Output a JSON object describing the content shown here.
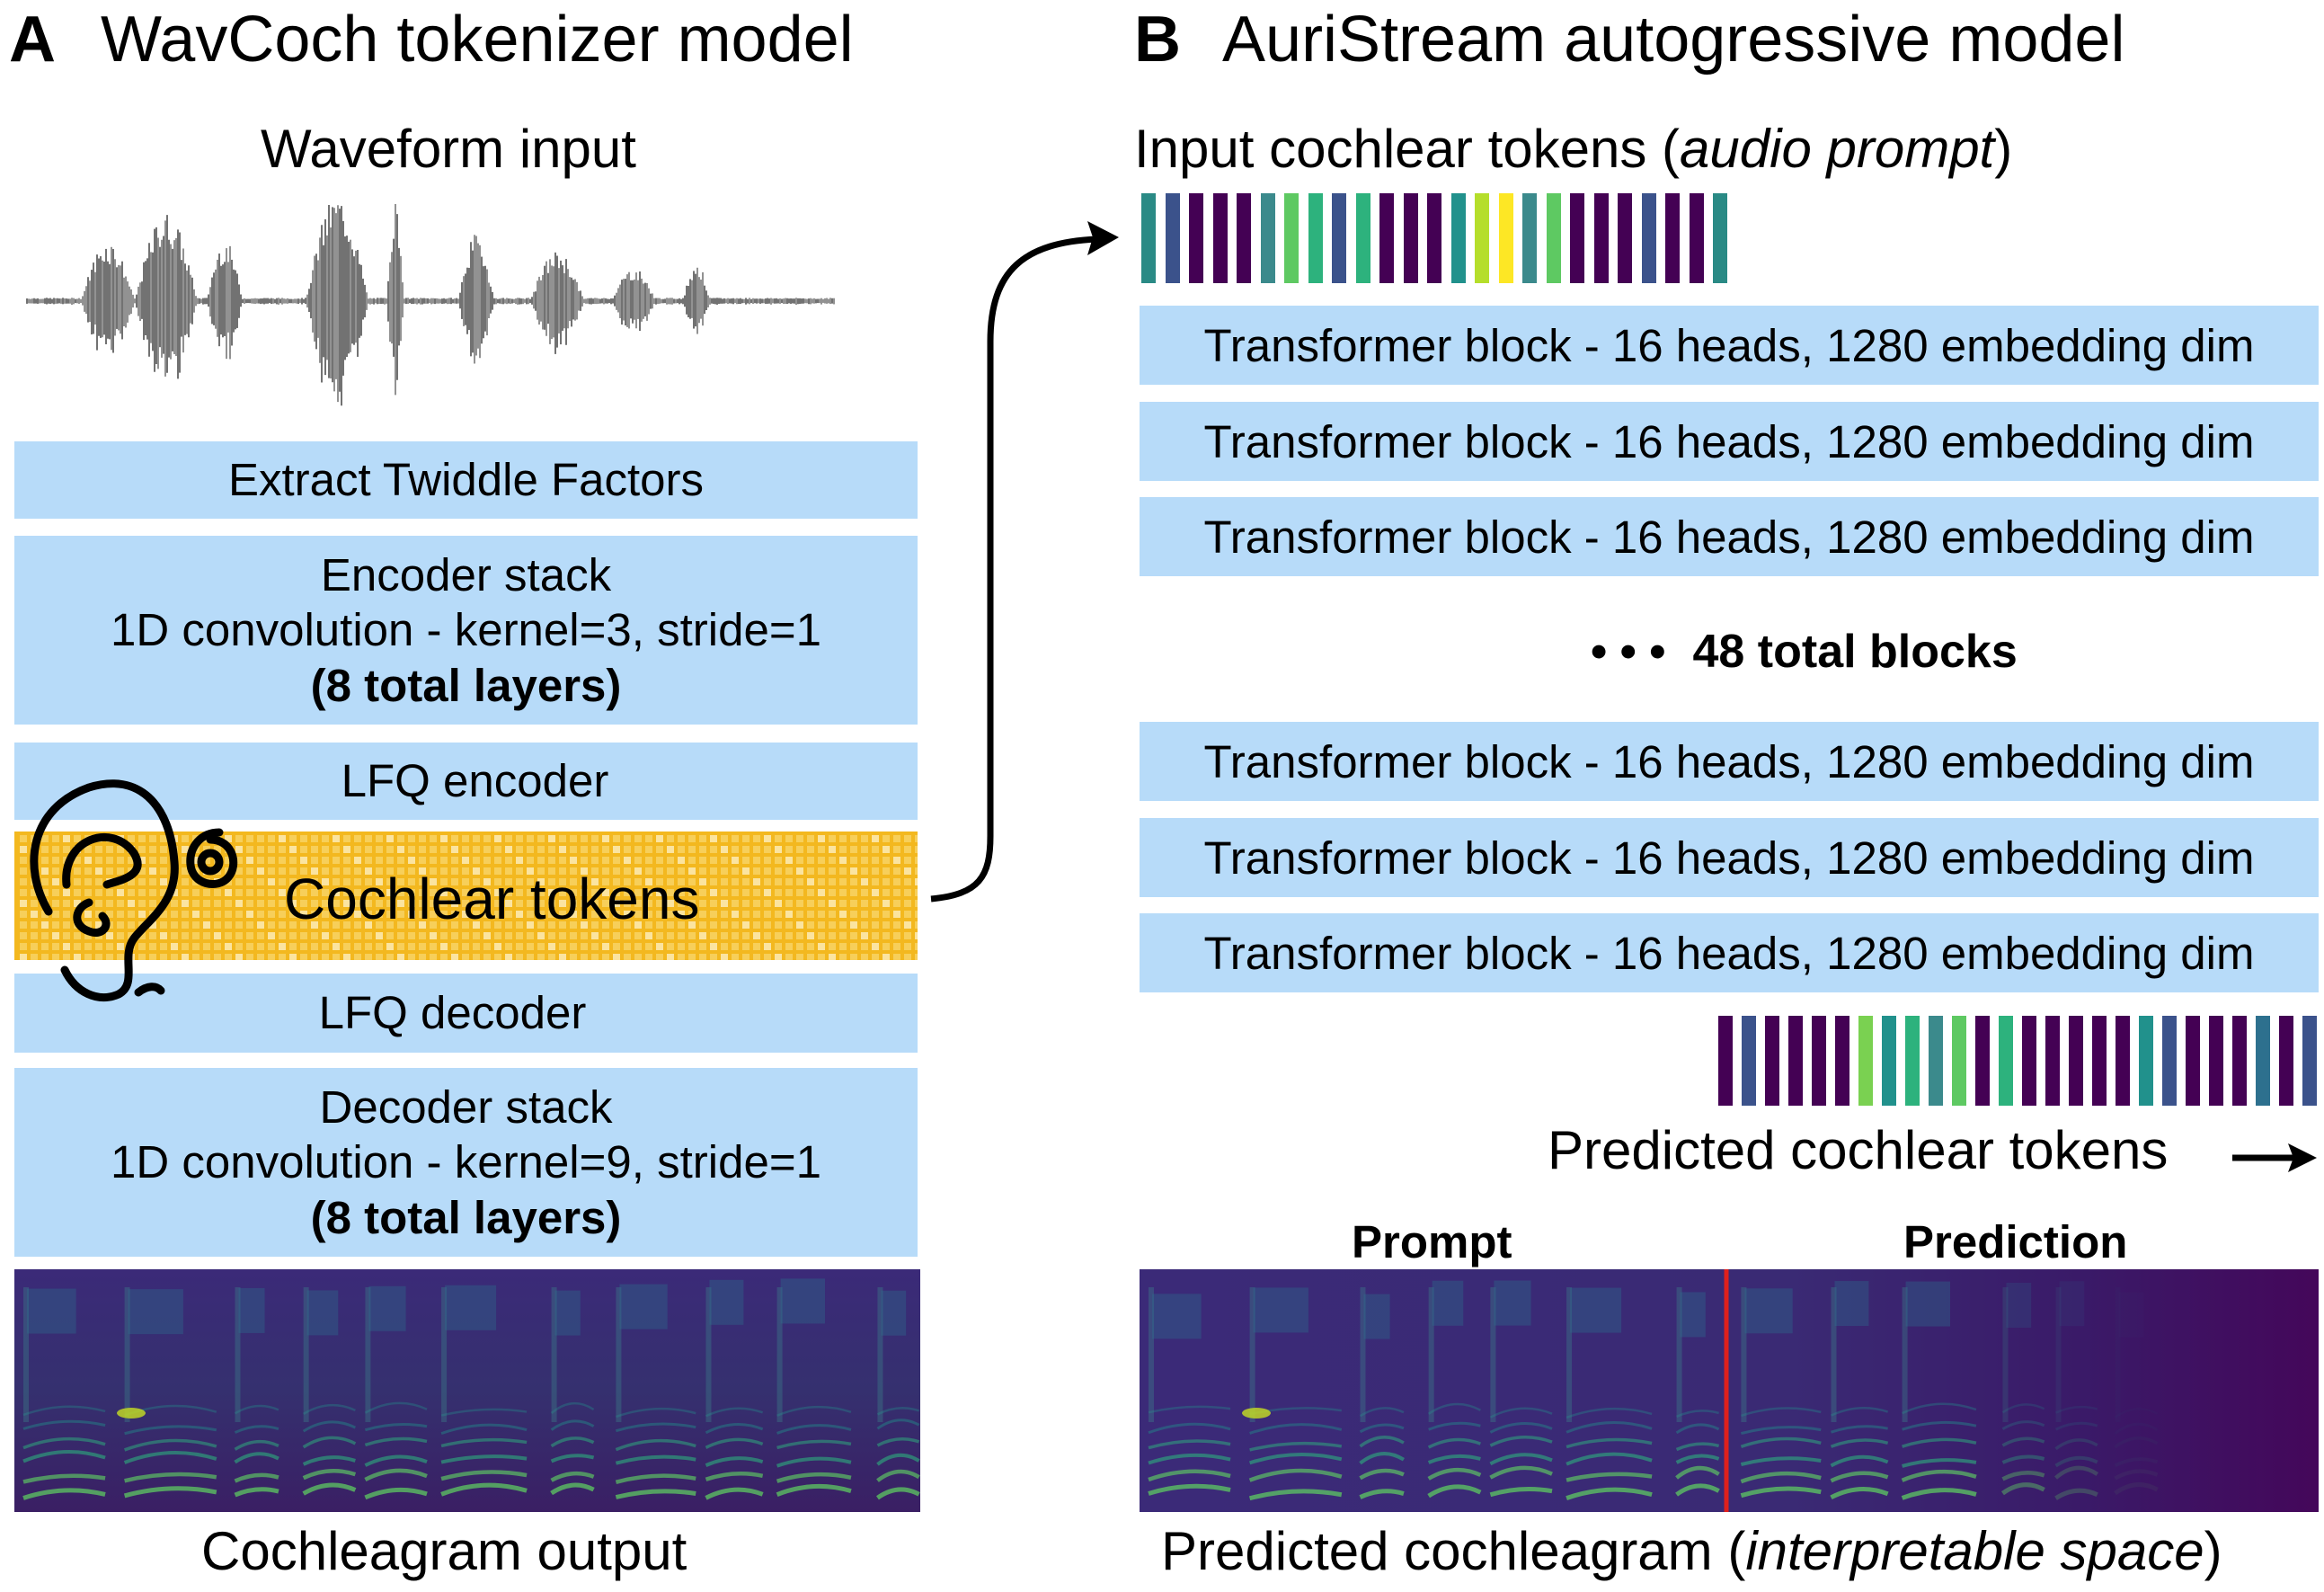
{
  "panel_a": {
    "letter": "A",
    "title": "WavCoch tokenizer model",
    "waveform_label": "Waveform input",
    "boxes": {
      "twiddle": "Extract Twiddle Factors",
      "encoder_title": "Encoder stack",
      "encoder_detail": "1D convolution - kernel=3, stride=1",
      "encoder_layers": "(8 total layers)",
      "lfq_encoder": "LFQ encoder",
      "cochlear_tokens": "Cochlear tokens",
      "lfq_decoder": "LFQ decoder",
      "decoder_title": "Decoder stack",
      "decoder_detail": "1D convolution - kernel=9, stride=1",
      "decoder_layers": "(8 total layers)"
    },
    "output_label": "Cochleagram output",
    "icon": "ear-icon"
  },
  "panel_b": {
    "letter": "B",
    "title": "AuriStream autogressive model",
    "input_label_main": "Input cochlear tokens (",
    "input_label_italic": "audio prompt",
    "input_label_close": ")",
    "transformer_block_label": "Transformer block - 16 heads, 1280 embedding dim",
    "ellipsis": "• • •",
    "total_blocks": "48 total blocks",
    "predicted_tokens_label": "Predicted cochlear tokens",
    "prompt_label": "Prompt",
    "prediction_label": "Prediction",
    "output_label_main": "Predicted cochleagram (",
    "output_label_italic": "interpretable space",
    "output_label_close": ")"
  },
  "token_colors": {
    "input": [
      "#2a8a85",
      "#3b528b",
      "#440154",
      "#440154",
      "#440154",
      "#3b8a8c",
      "#5ec962",
      "#2db27d",
      "#3b528b",
      "#2db27d",
      "#440154",
      "#440154",
      "#440154",
      "#21918c",
      "#b5de2b",
      "#fde725",
      "#3b8a8c",
      "#5ec962",
      "#440154",
      "#440154",
      "#440154",
      "#3b528b",
      "#440154",
      "#440154",
      "#2a8a85"
    ],
    "predicted": [
      "#440154",
      "#3b528b",
      "#440154",
      "#440154",
      "#440154",
      "#440154",
      "#7ad151",
      "#21918c",
      "#2db27d",
      "#3b8a8c",
      "#5ec962",
      "#440154",
      "#2db27d",
      "#440154",
      "#440154",
      "#440154",
      "#440154",
      "#440154",
      "#21918c",
      "#3b528b",
      "#440154",
      "#440154",
      "#440154",
      "#2d708e",
      "#440154",
      "#3b528b"
    ]
  },
  "colors": {
    "box_fill": "#b7dbf9",
    "token_band": "#f3b81f",
    "cochleagram_bg": "#3e1a6b",
    "divider": "#e0201c"
  }
}
